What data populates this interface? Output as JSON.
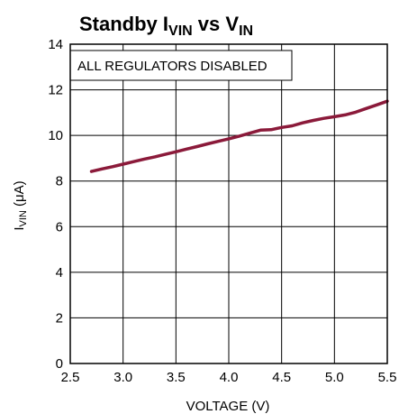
{
  "chart_data": {
    "type": "line",
    "title": {
      "main": "Standby I",
      "sub1": "VIN",
      "mid": " vs V",
      "sub2": "IN"
    },
    "xlabel": "VOLTAGE (V)",
    "ylabel": {
      "main": "I",
      "sub": "VIN",
      "rest": " (μA)"
    },
    "annotation": "ALL REGULATORS DISABLED",
    "xlim": [
      2.5,
      5.5
    ],
    "ylim": [
      0,
      14
    ],
    "x_ticks": [
      2.5,
      3.0,
      3.5,
      4.0,
      4.5,
      5.0,
      5.5
    ],
    "x_tick_labels": [
      "2.5",
      "3.0",
      "3.5",
      "4.0",
      "4.5",
      "5.0",
      "5.5"
    ],
    "y_ticks": [
      0,
      2,
      4,
      6,
      8,
      10,
      12,
      14
    ],
    "y_tick_labels": [
      "0",
      "2",
      "4",
      "6",
      "8",
      "10",
      "12",
      "14"
    ],
    "grid": true,
    "series": [
      {
        "color": "#8b1a3a",
        "x": [
          2.7,
          2.8,
          2.9,
          3.0,
          3.1,
          3.2,
          3.3,
          3.4,
          3.5,
          3.6,
          3.7,
          3.8,
          3.9,
          4.0,
          4.1,
          4.2,
          4.3,
          4.4,
          4.5,
          4.6,
          4.7,
          4.8,
          4.9,
          5.0,
          5.1,
          5.2,
          5.3,
          5.4,
          5.5
        ],
        "y": [
          8.42,
          8.53,
          8.63,
          8.74,
          8.85,
          8.96,
          9.06,
          9.17,
          9.28,
          9.4,
          9.51,
          9.63,
          9.74,
          9.85,
          9.97,
          10.1,
          10.23,
          10.25,
          10.35,
          10.42,
          10.55,
          10.66,
          10.75,
          10.82,
          10.9,
          11.02,
          11.18,
          11.34,
          11.5
        ]
      }
    ]
  }
}
